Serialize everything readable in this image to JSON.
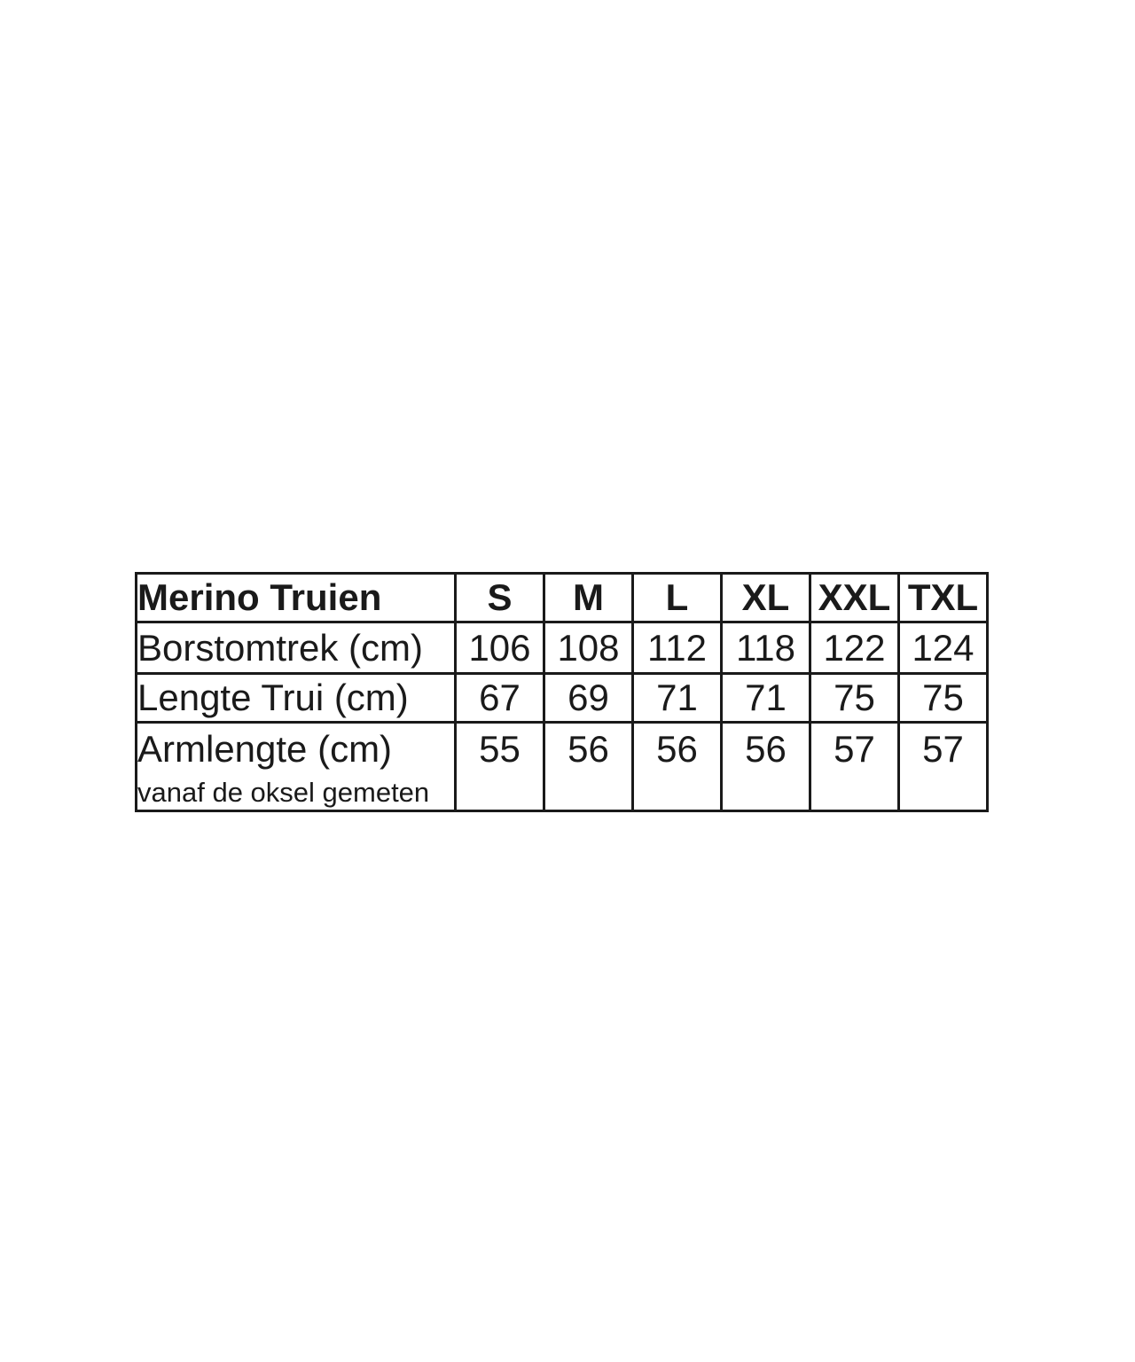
{
  "colors": {
    "background": "#ffffff",
    "border": "#1a1a1a",
    "text": "#1a1a1a"
  },
  "table": {
    "title": "Merino Truien",
    "sizes": [
      "S",
      "M",
      "L",
      "XL",
      "XXL",
      "TXL"
    ],
    "rows": [
      {
        "label": "Borstomtrek (cm)",
        "note": "",
        "values": [
          "106",
          "108",
          "112",
          "118",
          "122",
          "124"
        ]
      },
      {
        "label": "Lengte Trui (cm)",
        "note": "",
        "values": [
          "67",
          "69",
          "71",
          "71",
          "75",
          "75"
        ]
      },
      {
        "label": "Armlengte (cm)",
        "note": "vanaf de oksel gemeten",
        "values": [
          "55",
          "56",
          "56",
          "56",
          "57",
          "57"
        ]
      }
    ]
  },
  "chart_data": {
    "type": "table",
    "title": "Merino Truien",
    "columns": [
      "Merino Truien",
      "S",
      "M",
      "L",
      "XL",
      "XXL",
      "TXL"
    ],
    "rows": [
      {
        "label": "Borstomtrek (cm)",
        "values": [
          106,
          108,
          112,
          118,
          122,
          124
        ]
      },
      {
        "label": "Lengte Trui (cm)",
        "values": [
          67,
          69,
          71,
          71,
          75,
          75
        ]
      },
      {
        "label": "Armlengte (cm) vanaf de oksel gemeten",
        "values": [
          55,
          56,
          56,
          56,
          57,
          57
        ]
      }
    ]
  }
}
